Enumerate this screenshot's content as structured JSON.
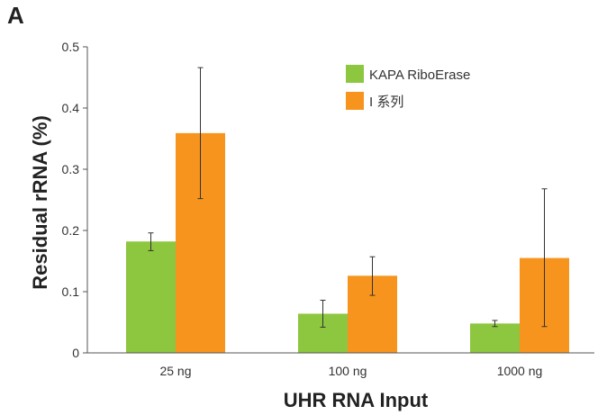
{
  "panel_label": "A",
  "chart_data": {
    "type": "bar",
    "title": "",
    "xlabel": "UHR RNA Input",
    "ylabel": "Residual rRNA (%)",
    "ylim": [
      0,
      0.5
    ],
    "yticks": [
      "0",
      "0.1",
      "0.2",
      "0.3",
      "0.4",
      "0.5"
    ],
    "categories": [
      "25 ng",
      "100 ng",
      "1000 ng"
    ],
    "legend_position": "top-right",
    "series": [
      {
        "name": "KAPA RiboErase",
        "color": "#8dc63f",
        "values": [
          0.182,
          0.064,
          0.048
        ],
        "error_low": [
          0.167,
          0.042,
          0.043
        ],
        "error_high": [
          0.196,
          0.086,
          0.053
        ]
      },
      {
        "name": "I 系列",
        "color": "#f7941d",
        "values": [
          0.359,
          0.126,
          0.155
        ],
        "error_low": [
          0.252,
          0.094,
          0.043
        ],
        "error_high": [
          0.466,
          0.157,
          0.268
        ]
      }
    ]
  }
}
